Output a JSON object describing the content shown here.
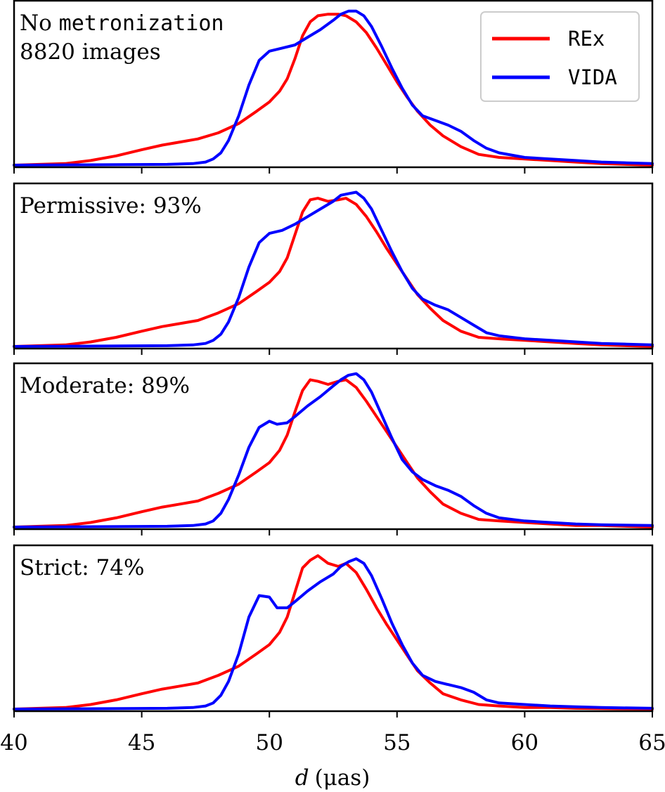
{
  "chart_data": {
    "type": "line",
    "xlabel_italic": "d",
    "xlabel_unit": "(μas)",
    "xlim": [
      40,
      65
    ],
    "xticks": [
      40,
      45,
      50,
      55,
      60,
      65
    ],
    "colors": {
      "REx": "#ff0000",
      "VIDA": "#0000ff"
    },
    "legend": {
      "location": "top-right",
      "entries": [
        "REx",
        "VIDA"
      ]
    },
    "panels": [
      {
        "label_prefix": "No ",
        "label_mono": "metronization",
        "label_line2": "8820 images",
        "series": [
          {
            "name": "REx",
            "x": [
              40,
              42,
              43,
              44,
              45,
              45.8,
              46.5,
              47.2,
              48,
              48.8,
              49.5,
              50,
              50.4,
              50.7,
              51,
              51.3,
              51.6,
              51.9,
              52.3,
              52.7,
              53,
              53.4,
              53.8,
              54.2,
              54.6,
              55,
              55.4,
              55.8,
              56.3,
              56.8,
              57.5,
              58.2,
              59,
              60,
              61,
              62,
              63,
              65
            ],
            "y": [
              0,
              0.01,
              0.03,
              0.06,
              0.1,
              0.13,
              0.15,
              0.17,
              0.21,
              0.27,
              0.35,
              0.41,
              0.48,
              0.56,
              0.69,
              0.84,
              0.93,
              0.97,
              0.98,
              0.98,
              0.97,
              0.93,
              0.86,
              0.76,
              0.65,
              0.54,
              0.44,
              0.35,
              0.26,
              0.19,
              0.12,
              0.07,
              0.05,
              0.04,
              0.03,
              0.02,
              0.01,
              0
            ]
          },
          {
            "name": "VIDA",
            "x": [
              40,
              46,
              47,
              47.5,
              47.8,
              48.1,
              48.4,
              48.8,
              49.2,
              49.6,
              50,
              50.5,
              51,
              51.5,
              52,
              52.5,
              52.8,
              53.1,
              53.4,
              53.7,
              54,
              54.4,
              54.8,
              55.2,
              55.6,
              56,
              56.5,
              57,
              57.5,
              58,
              58.5,
              59,
              60,
              61,
              62,
              63,
              64,
              65
            ],
            "y": [
              0,
              0.005,
              0.01,
              0.02,
              0.04,
              0.08,
              0.16,
              0.32,
              0.52,
              0.68,
              0.74,
              0.76,
              0.78,
              0.83,
              0.88,
              0.94,
              0.98,
              1.0,
              1.0,
              0.97,
              0.9,
              0.77,
              0.63,
              0.5,
              0.39,
              0.32,
              0.29,
              0.26,
              0.22,
              0.16,
              0.11,
              0.08,
              0.05,
              0.04,
              0.03,
              0.02,
              0.015,
              0.01
            ]
          }
        ]
      },
      {
        "label_prefix": "Permissive: 93%",
        "label_mono": "",
        "label_line2": "",
        "series": [
          {
            "name": "REx",
            "x": [
              40,
              42,
              43,
              44,
              45,
              45.8,
              46.5,
              47.2,
              48,
              48.8,
              49.5,
              50,
              50.4,
              50.7,
              51,
              51.3,
              51.6,
              51.9,
              52.3,
              52.7,
              53,
              53.4,
              53.8,
              54.2,
              54.6,
              55,
              55.4,
              55.8,
              56.3,
              56.8,
              57.5,
              58.2,
              59,
              60,
              61,
              62,
              63,
              65
            ],
            "y": [
              0,
              0.01,
              0.03,
              0.06,
              0.1,
              0.13,
              0.15,
              0.17,
              0.22,
              0.28,
              0.36,
              0.42,
              0.49,
              0.58,
              0.73,
              0.88,
              0.96,
              0.97,
              0.95,
              0.96,
              0.97,
              0.93,
              0.85,
              0.75,
              0.64,
              0.54,
              0.44,
              0.34,
              0.25,
              0.17,
              0.1,
              0.06,
              0.05,
              0.04,
              0.03,
              0.02,
              0.01,
              0
            ]
          },
          {
            "name": "VIDA",
            "x": [
              40,
              46,
              47,
              47.5,
              47.8,
              48.1,
              48.4,
              48.8,
              49.2,
              49.6,
              50,
              50.5,
              51,
              51.5,
              52,
              52.5,
              52.8,
              53.1,
              53.4,
              53.7,
              54,
              54.4,
              54.8,
              55.2,
              55.6,
              56,
              56.5,
              57,
              57.5,
              58,
              58.5,
              59,
              60,
              61,
              62,
              63,
              64,
              65
            ],
            "y": [
              0,
              0.005,
              0.01,
              0.02,
              0.04,
              0.08,
              0.16,
              0.32,
              0.52,
              0.68,
              0.74,
              0.76,
              0.8,
              0.85,
              0.9,
              0.95,
              0.99,
              1.0,
              1.01,
              0.97,
              0.9,
              0.76,
              0.62,
              0.49,
              0.38,
              0.31,
              0.27,
              0.24,
              0.19,
              0.14,
              0.09,
              0.07,
              0.05,
              0.04,
              0.03,
              0.02,
              0.015,
              0.01
            ]
          }
        ]
      },
      {
        "label_prefix": "Moderate: 89%",
        "label_mono": "",
        "label_line2": "",
        "series": [
          {
            "name": "REx",
            "x": [
              40,
              42,
              43,
              44,
              45,
              45.8,
              46.5,
              47.2,
              48,
              48.8,
              49.5,
              50,
              50.4,
              50.7,
              51,
              51.3,
              51.6,
              51.9,
              52.3,
              52.7,
              53,
              53.4,
              53.8,
              54.2,
              54.6,
              55,
              55.4,
              55.8,
              56.3,
              56.8,
              57.5,
              58.2,
              59,
              60,
              61,
              62,
              63,
              65
            ],
            "y": [
              0,
              0.01,
              0.03,
              0.06,
              0.1,
              0.13,
              0.15,
              0.17,
              0.22,
              0.28,
              0.36,
              0.42,
              0.5,
              0.6,
              0.75,
              0.89,
              0.96,
              0.95,
              0.93,
              0.95,
              0.96,
              0.91,
              0.82,
              0.72,
              0.62,
              0.52,
              0.42,
              0.32,
              0.23,
              0.15,
              0.09,
              0.05,
              0.04,
              0.03,
              0.02,
              0.01,
              0.01,
              0
            ]
          },
          {
            "name": "VIDA",
            "x": [
              40,
              46,
              47,
              47.5,
              47.8,
              48.1,
              48.4,
              48.8,
              49.2,
              49.6,
              50,
              50.3,
              50.7,
              51,
              51.5,
              52,
              52.5,
              52.8,
              53.1,
              53.4,
              53.7,
              54,
              54.4,
              54.8,
              55.2,
              55.6,
              56,
              56.5,
              57,
              57.5,
              58,
              58.5,
              59,
              60,
              61,
              62,
              63,
              65
            ],
            "y": [
              0,
              0.005,
              0.01,
              0.02,
              0.04,
              0.09,
              0.18,
              0.34,
              0.52,
              0.65,
              0.69,
              0.67,
              0.68,
              0.72,
              0.79,
              0.85,
              0.92,
              0.96,
              0.99,
              1.0,
              0.96,
              0.88,
              0.73,
              0.58,
              0.44,
              0.36,
              0.31,
              0.27,
              0.24,
              0.2,
              0.14,
              0.09,
              0.06,
              0.04,
              0.03,
              0.02,
              0.015,
              0.01
            ]
          }
        ]
      },
      {
        "label_prefix": "Strict: 74%",
        "label_mono": "",
        "label_line2": "",
        "series": [
          {
            "name": "REx",
            "x": [
              40,
              42,
              43,
              44,
              45,
              45.8,
              46.5,
              47.2,
              48,
              48.8,
              49.5,
              50,
              50.4,
              50.7,
              51,
              51.3,
              51.6,
              51.9,
              52.3,
              52.7,
              53,
              53.4,
              53.8,
              54.2,
              54.6,
              55,
              55.4,
              55.8,
              56.3,
              56.8,
              57.5,
              58.2,
              59,
              60,
              61,
              62,
              63,
              65
            ],
            "y": [
              0,
              0.01,
              0.03,
              0.06,
              0.1,
              0.13,
              0.15,
              0.17,
              0.22,
              0.28,
              0.36,
              0.42,
              0.5,
              0.6,
              0.76,
              0.92,
              0.97,
              1.0,
              0.95,
              0.93,
              0.95,
              0.89,
              0.78,
              0.66,
              0.55,
              0.45,
              0.35,
              0.25,
              0.17,
              0.1,
              0.06,
              0.03,
              0.02,
              0.01,
              0.01,
              0.005,
              0.003,
              0
            ]
          },
          {
            "name": "VIDA",
            "x": [
              40,
              46,
              47,
              47.5,
              47.8,
              48.1,
              48.4,
              48.8,
              49.2,
              49.6,
              50,
              50.3,
              50.7,
              51,
              51.5,
              52,
              52.5,
              52.8,
              53.1,
              53.4,
              53.7,
              54,
              54.4,
              54.8,
              55.2,
              55.6,
              56,
              56.5,
              57,
              57.5,
              58,
              58.5,
              59,
              60,
              61,
              62,
              63,
              65
            ],
            "y": [
              0,
              0.005,
              0.01,
              0.02,
              0.04,
              0.09,
              0.18,
              0.36,
              0.6,
              0.74,
              0.73,
              0.66,
              0.66,
              0.7,
              0.77,
              0.83,
              0.88,
              0.93,
              0.96,
              0.98,
              0.95,
              0.87,
              0.72,
              0.56,
              0.42,
              0.3,
              0.22,
              0.18,
              0.16,
              0.14,
              0.11,
              0.06,
              0.04,
              0.03,
              0.02,
              0.015,
              0.01,
              0.005
            ]
          }
        ]
      }
    ]
  }
}
